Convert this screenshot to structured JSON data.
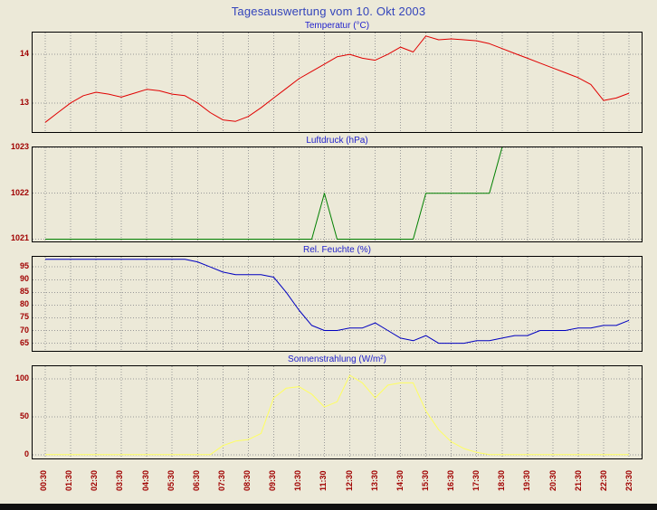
{
  "page": {
    "title": "Tagesauswertung vom 10. Okt 2003",
    "title_color": "#3344BB",
    "chart_title_color": "#2222CC",
    "background": "#ECE9D8",
    "bottom_bar_color": "#101010"
  },
  "axis": {
    "label_color": "#A00000",
    "grid_color": "#999999",
    "border_color": "#000000",
    "x_range": [
      0,
      24
    ],
    "x_tick_hours": [
      0.5,
      1.5,
      2.5,
      3.5,
      4.5,
      5.5,
      6.5,
      7.5,
      8.5,
      9.5,
      10.5,
      11.5,
      12.5,
      13.5,
      14.5,
      15.5,
      16.5,
      17.5,
      18.5,
      19.5,
      20.5,
      21.5,
      22.5,
      23.5
    ],
    "x_tick_labels": [
      "00:30",
      "01:30",
      "02:30",
      "03:30",
      "04:30",
      "05:30",
      "06:30",
      "07:30",
      "08:30",
      "09:30",
      "10:30",
      "11:30",
      "12:30",
      "13:30",
      "14:30",
      "15:30",
      "16:30",
      "17:30",
      "18:30",
      "19:30",
      "20:30",
      "21:30",
      "22:30",
      "23:30"
    ]
  },
  "chart_data": [
    {
      "type": "line",
      "title": "Temperatur (°C)",
      "color": "#E00000",
      "ylim": [
        12.4,
        14.45
      ],
      "yticks": [
        13,
        14
      ],
      "x_start": 0.5,
      "x_step": 0.5,
      "values": [
        12.6,
        12.8,
        13.0,
        13.15,
        13.22,
        13.18,
        13.12,
        13.2,
        13.28,
        13.25,
        13.18,
        13.15,
        13.0,
        12.8,
        12.65,
        12.62,
        12.72,
        12.9,
        13.1,
        13.3,
        13.5,
        13.65,
        13.8,
        13.95,
        14.0,
        13.92,
        13.88,
        14.0,
        14.15,
        14.05,
        14.38,
        14.3,
        14.32,
        14.3,
        14.28,
        14.22,
        14.12,
        14.02,
        13.92,
        13.82,
        13.72,
        13.62,
        13.52,
        13.38,
        13.05,
        13.1,
        13.2
      ]
    },
    {
      "type": "line",
      "title": "Luftdruck (hPa)",
      "color": "#008000",
      "ylim": [
        1020.95,
        1023
      ],
      "yticks": [
        1021,
        1022,
        1023
      ],
      "x_start": 0.5,
      "x_step": 0.5,
      "values": [
        1021,
        1021,
        1021,
        1021,
        1021,
        1021,
        1021,
        1021,
        1021,
        1021,
        1021,
        1021,
        1021,
        1021,
        1021,
        1021,
        1021,
        1021,
        1021,
        1021,
        1021,
        1021,
        1022,
        1021,
        1021,
        1021,
        1021,
        1021,
        1021,
        1021,
        1022,
        1022,
        1022,
        1022,
        1022,
        1022,
        1023
      ]
    },
    {
      "type": "line",
      "title": "Rel. Feuchte (%)",
      "color": "#0000C0",
      "ylim": [
        62,
        99
      ],
      "yticks": [
        65,
        70,
        75,
        80,
        85,
        90,
        95
      ],
      "x_start": 0.5,
      "x_step": 0.5,
      "values": [
        98,
        98,
        98,
        98,
        98,
        98,
        98,
        98,
        98,
        98,
        98,
        98,
        97,
        95,
        93,
        92,
        92,
        92,
        91,
        85,
        78,
        72,
        70,
        70,
        71,
        71,
        73,
        70,
        67,
        66,
        68,
        65,
        65,
        65,
        66,
        66,
        67,
        68,
        68,
        70,
        70,
        70,
        71,
        71,
        72,
        72,
        74
      ]
    },
    {
      "type": "line",
      "title": "Sonnenstrahlung (W/m²)",
      "color": "#FFFF60",
      "ylim": [
        -5,
        117
      ],
      "yticks": [
        0,
        50,
        100
      ],
      "x_start": 0.5,
      "x_step": 0.5,
      "values": [
        0,
        0,
        0,
        0,
        0,
        0,
        0,
        0,
        0,
        0,
        0,
        0,
        0,
        0,
        12,
        18,
        20,
        28,
        75,
        88,
        90,
        80,
        63,
        70,
        105,
        95,
        75,
        92,
        95,
        95,
        58,
        33,
        17,
        8,
        3,
        0,
        0,
        0,
        0,
        0,
        0,
        0,
        0,
        0,
        0,
        0,
        0
      ]
    }
  ]
}
